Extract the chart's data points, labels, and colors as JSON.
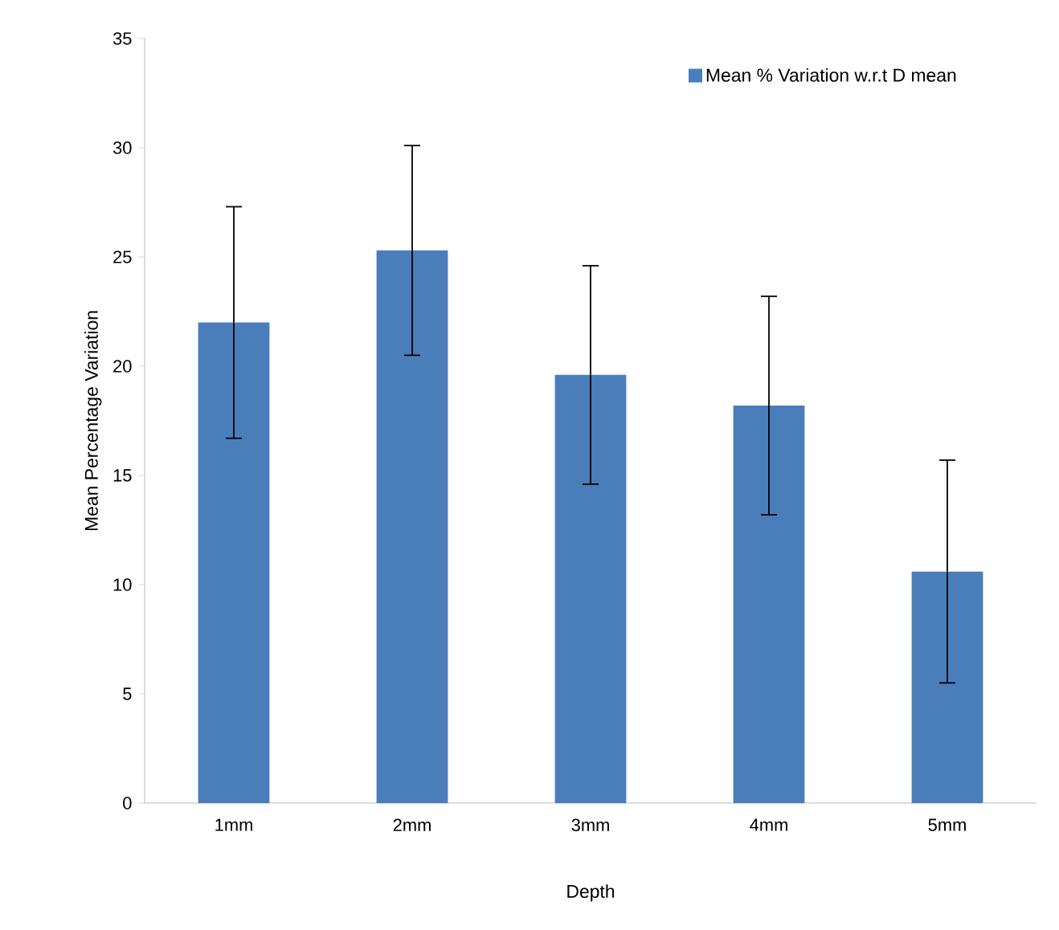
{
  "chart_data": {
    "type": "bar",
    "xlabel": "Depth",
    "ylabel": "Mean Percentage Variation",
    "categories": [
      "1mm",
      "2mm",
      "3mm",
      "4mm",
      "5mm"
    ],
    "series": [
      {
        "name": "Mean % Variation w.r.t D mean",
        "color": "#4a7ebb",
        "values": [
          22.0,
          25.3,
          19.6,
          18.2,
          10.6
        ],
        "errors": [
          5.3,
          4.8,
          5.0,
          5.0,
          5.1
        ]
      }
    ],
    "ylim": [
      0,
      35
    ],
    "yticks": [
      0,
      5,
      10,
      15,
      20,
      25,
      30,
      35
    ],
    "legend": "top right"
  }
}
